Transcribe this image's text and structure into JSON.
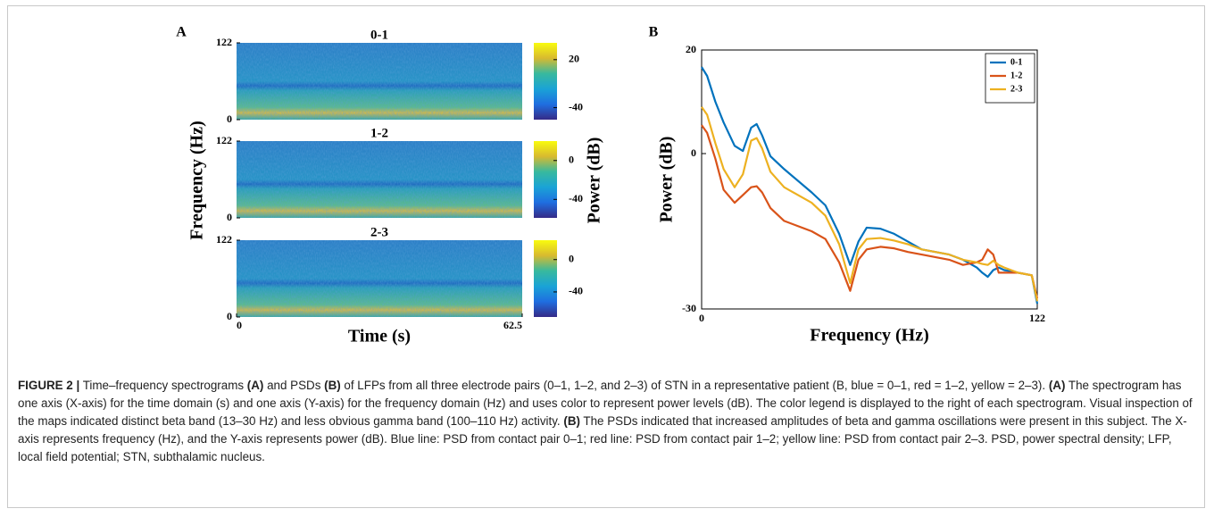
{
  "panel_a": {
    "label": "A",
    "ylabel": "Frequency (Hz)",
    "xlabel": "Time (s)",
    "colorbar_label": "Power (dB)",
    "xlim": [
      0,
      62.5
    ],
    "xticks": [
      0,
      62.5
    ],
    "spectrograms": [
      {
        "title": "0-1",
        "ylim": [
          0,
          122
        ],
        "yticks": [
          0,
          122
        ],
        "clim": [
          -55,
          41
        ],
        "cticks": [
          -40,
          20
        ]
      },
      {
        "title": "1-2",
        "ylim": [
          0,
          122
        ],
        "yticks": [
          0,
          122
        ],
        "clim": [
          -59,
          20
        ],
        "cticks": [
          -40,
          0
        ]
      },
      {
        "title": "2-3",
        "ylim": [
          0,
          122
        ],
        "yticks": [
          0,
          122
        ],
        "clim": [
          -71,
          24
        ],
        "cticks": [
          -40,
          0
        ]
      }
    ]
  },
  "chart_data": {
    "type": "line",
    "label": "B",
    "x_label": "Frequency (Hz)",
    "y_label": "Power (dB)",
    "x": [
      0,
      2,
      5,
      8,
      12,
      15,
      18,
      20,
      22,
      25,
      30,
      40,
      45,
      50,
      54,
      57,
      60,
      65,
      70,
      75,
      80,
      90,
      95,
      100,
      102,
      104,
      106,
      108,
      110,
      115,
      120,
      122
    ],
    "xlim": [
      0,
      122
    ],
    "xticks": [
      0,
      122
    ],
    "ylim": [
      -30,
      20
    ],
    "yticks": [
      -30,
      0,
      20
    ],
    "legend": "upper right",
    "series": [
      {
        "name": "0-1",
        "color": "#0072bd",
        "values": [
          16.7,
          15,
          10,
          6,
          1.5,
          0.5,
          5,
          5.7,
          3.5,
          -0.5,
          -3,
          -7.5,
          -10,
          -15.5,
          -21.5,
          -17,
          -14.3,
          -14.5,
          -15.5,
          -17,
          -18.5,
          -19.5,
          -20.5,
          -22,
          -23,
          -23.8,
          -22.5,
          -22,
          -22.5,
          -23,
          -23.5,
          -29
        ]
      },
      {
        "name": "1-2",
        "color": "#d95319",
        "values": [
          5.5,
          4,
          -1,
          -7,
          -9.5,
          -8,
          -6.5,
          -6.3,
          -7.5,
          -10.5,
          -13,
          -15,
          -16.5,
          -21,
          -26.5,
          -20.5,
          -18.5,
          -18,
          -18.3,
          -19,
          -19.5,
          -20.5,
          -21.5,
          -21,
          -20.5,
          -18.5,
          -19.5,
          -23,
          -23,
          -23,
          -23.5,
          -28
        ]
      },
      {
        "name": "2-3",
        "color": "#edb120",
        "values": [
          9,
          7.5,
          2,
          -3,
          -6.5,
          -4,
          2.5,
          3,
          1,
          -3.5,
          -6.5,
          -9.5,
          -12,
          -17.5,
          -25,
          -18.5,
          -16.5,
          -16.3,
          -16.8,
          -17.5,
          -18.5,
          -19.5,
          -20.5,
          -21,
          -21.3,
          -21.5,
          -20.7,
          -21.5,
          -22,
          -23,
          -23.5,
          -28.5
        ]
      }
    ]
  },
  "caption": {
    "parts": [
      {
        "text": "FIGURE 2 |",
        "bold": true
      },
      {
        "text": " Time–frequency spectrograms ",
        "bold": false
      },
      {
        "text": "(A)",
        "bold": true
      },
      {
        "text": " and PSDs ",
        "bold": false
      },
      {
        "text": "(B)",
        "bold": true
      },
      {
        "text": " of LFPs from all three electrode pairs (0–1, 1–2, and 2–3) of STN in a representative patient (B, blue = 0–1, red = 1–2, yellow = 2–3). ",
        "bold": false
      },
      {
        "text": "(A)",
        "bold": true
      },
      {
        "text": " The spectrogram has one axis (X-axis) for the time domain (s) and one axis (Y-axis) for the frequency domain (Hz) and uses color to represent power levels (dB). The color legend is displayed to the right of each spectrogram. Visual inspection of the maps indicated distinct beta band (13–30 Hz) and less obvious gamma band (100–110 Hz) activity. ",
        "bold": false
      },
      {
        "text": "(B)",
        "bold": true
      },
      {
        "text": " The PSDs indicated that increased amplitudes of beta and gamma oscillations were present in this subject. The X-axis represents frequency (Hz), and the Y-axis represents power (dB). Blue line: PSD from contact pair 0–1; red line: PSD from contact pair 1–2; yellow line: PSD from contact pair 2–3. PSD, power spectral density; LFP, local field potential; STN, subthalamic nucleus.",
        "bold": false
      }
    ]
  }
}
